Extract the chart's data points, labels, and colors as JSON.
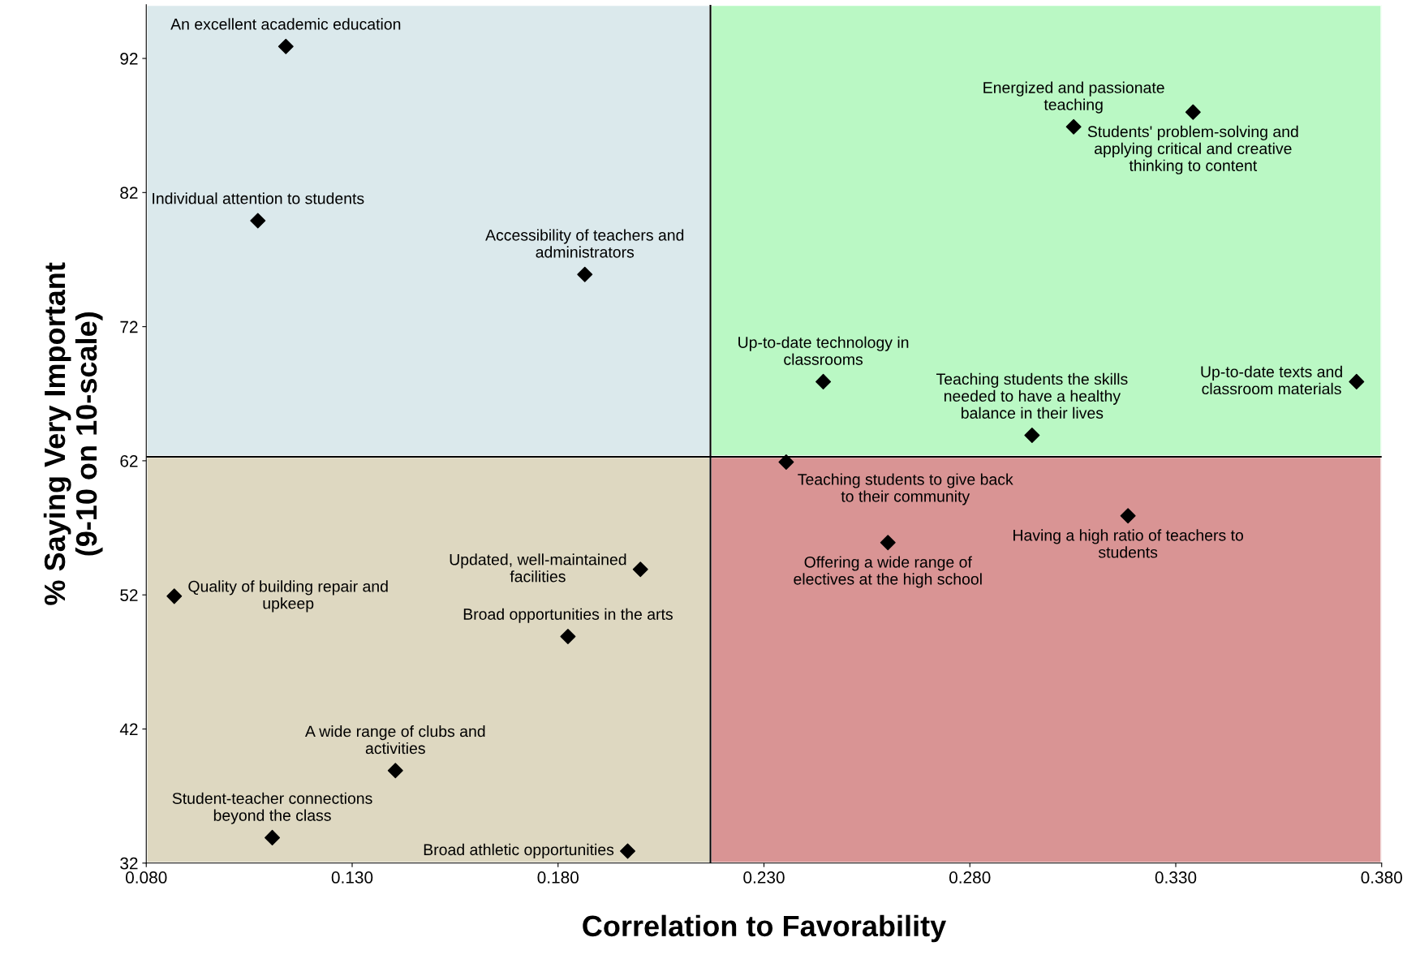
{
  "chart_data": {
    "type": "scatter",
    "xlabel": "Correlation to Favorability",
    "ylabel": "% Saying Very Important\n(9-10 on 10-scale)",
    "x": [
      0.1139,
      0.1071,
      0.1865,
      0.3052,
      0.3342,
      0.2444,
      0.3739,
      0.2951,
      0.2354,
      0.2601,
      0.3184,
      0.0868,
      0.2,
      0.1824,
      0.1405,
      0.1106,
      0.1969
    ],
    "values": [
      92.9,
      79.9,
      75.9,
      86.9,
      88.0,
      67.9,
      67.9,
      63.9,
      61.9,
      55.9,
      57.9,
      51.9,
      53.9,
      48.9,
      38.9,
      33.9,
      32.9
    ],
    "color": "#000000",
    "marker": "diamond",
    "annotations": [
      {
        "text": "An excellent academic education",
        "x": 0.1139,
        "y": 92.9
      },
      {
        "text": "Individual attention to students",
        "x": 0.1071,
        "y": 79.9
      },
      {
        "text": "Accessibility of teachers and\nadministrators",
        "x": 0.1865,
        "y": 75.9
      },
      {
        "text": "Energized and passionate\nteaching",
        "x": 0.3052,
        "y": 86.9
      },
      {
        "text": "Students' problem-solving and\napplying critical and creative\nthinking to content",
        "x": 0.3342,
        "y": 88.0
      },
      {
        "text": "Up-to-date technology in\nclassrooms",
        "x": 0.2444,
        "y": 67.9
      },
      {
        "text": "Up-to-date texts and\nclassroom materials",
        "x": 0.3739,
        "y": 67.9
      },
      {
        "text": "Teaching students the skills\nneeded to have a healthy\nbalance in their lives",
        "x": 0.2951,
        "y": 63.9
      },
      {
        "text": "Teaching students to give back\nto their community",
        "x": 0.2354,
        "y": 61.9
      },
      {
        "text": "Offering a wide range of\nelectives at the high school",
        "x": 0.2601,
        "y": 55.9
      },
      {
        "text": "Having a high ratio of teachers to\nstudents",
        "x": 0.3184,
        "y": 57.9
      },
      {
        "text": "Quality of building repair and\nupkeep",
        "x": 0.0868,
        "y": 51.9
      },
      {
        "text": "Updated, well-maintained\nfacilities",
        "x": 0.2,
        "y": 53.9
      },
      {
        "text": "Broad opportunities in the arts",
        "x": 0.1824,
        "y": 48.9
      },
      {
        "text": "A wide range of clubs and\nactivities",
        "x": 0.1405,
        "y": 38.9
      },
      {
        "text": "Student-teacher connections\nbeyond the class",
        "x": 0.1106,
        "y": 33.9
      },
      {
        "text": "Broad athletic opportunities",
        "x": 0.1969,
        "y": 32.9
      }
    ],
    "ref_lines": [
      {
        "axis": "x",
        "value": 0.217,
        "color": "#000000"
      },
      {
        "axis": "y",
        "value": 62.3,
        "color": "#000000"
      }
    ],
    "xlim": [
      0.08,
      0.38
    ],
    "xticks": [
      {
        "value": 0.08,
        "label": "0.080"
      },
      {
        "value": 0.13,
        "label": "0.130"
      },
      {
        "value": 0.18,
        "label": "0.180"
      },
      {
        "value": 0.23,
        "label": "0.230"
      },
      {
        "value": 0.28,
        "label": "0.280"
      },
      {
        "value": 0.33,
        "label": "0.330"
      },
      {
        "value": 0.38,
        "label": "0.380"
      }
    ],
    "ylim": [
      32,
      96
    ],
    "yticks": [
      32,
      42,
      52,
      62,
      72,
      82,
      92
    ],
    "grid": false
  }
}
